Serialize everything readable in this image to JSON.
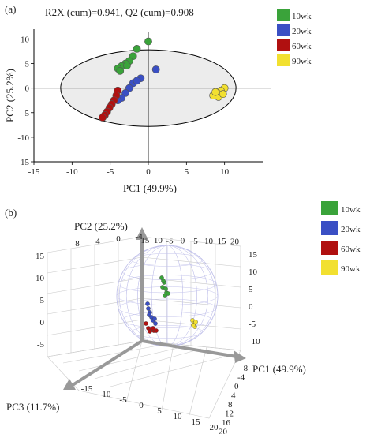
{
  "chart_data": [
    {
      "type": "scatter",
      "panel": "(a)",
      "title": "R2X (cum)=0.941, Q2 (cum)=0.908",
      "xlabel": "PC1 (49.9%)",
      "ylabel": "PC2 (25.2%)",
      "xlim": [
        -15,
        15
      ],
      "ylim": [
        -15,
        12
      ],
      "xticks": [
        "-15",
        "-10",
        "-5",
        "0",
        "5",
        "10"
      ],
      "yticks": [
        "10",
        "5",
        "0",
        "-5",
        "-10",
        "-15"
      ],
      "ellipse": {
        "center": [
          0,
          0
        ],
        "rx": 11.5,
        "ry": 7.8
      },
      "legend_position": "top-right",
      "series": [
        {
          "name": "10wk",
          "color": "#3aa33a",
          "points": [
            [
              0,
              9.5
            ],
            [
              -1.5,
              8
            ],
            [
              -2,
              6.5
            ],
            [
              -2.5,
              5.5
            ],
            [
              -3,
              5
            ],
            [
              -3.5,
              4.5
            ],
            [
              -4,
              4
            ],
            [
              -2.8,
              4.6
            ],
            [
              -3.7,
              3.5
            ]
          ]
        },
        {
          "name": "20wk",
          "color": "#3a4fc4",
          "points": [
            [
              1,
              3.8
            ],
            [
              -1,
              2
            ],
            [
              -2,
              1
            ],
            [
              -2.5,
              0
            ],
            [
              -3,
              -1
            ],
            [
              -3.5,
              -2
            ],
            [
              -4,
              -2.5
            ],
            [
              -1.5,
              1.5
            ]
          ]
        },
        {
          "name": "60wk",
          "color": "#b01010",
          "points": [
            [
              -4,
              -0.5
            ],
            [
              -4.2,
              -1.5
            ],
            [
              -4.5,
              -2.5
            ],
            [
              -4.8,
              -3.3
            ],
            [
              -5.1,
              -4
            ],
            [
              -5.4,
              -4.8
            ],
            [
              -5.7,
              -5.5
            ],
            [
              -6,
              -6
            ]
          ]
        },
        {
          "name": "90wk",
          "color": "#f2e030",
          "points": [
            [
              10,
              0
            ],
            [
              9.5,
              -0.5
            ],
            [
              9,
              -1
            ],
            [
              8.5,
              -1.5
            ],
            [
              9.2,
              -1.8
            ],
            [
              8.8,
              -0.8
            ],
            [
              9.8,
              -1.2
            ]
          ]
        }
      ]
    },
    {
      "type": "scatter",
      "panel": "(b)",
      "subtype": "3d",
      "xlabel": "PC1 (49.9%)",
      "ylabel": "PC2 (25.2%)",
      "zlabel": "PC3 (11.7%)",
      "pc1_ticks": [
        "-8",
        "-4",
        "0",
        "4",
        "8",
        "12",
        "16",
        "20"
      ],
      "pc2_ticks": [
        "15",
        "10",
        "5",
        "0",
        "-5",
        "-10"
      ],
      "pc3_ticks": [
        "-15",
        "-10",
        "-5",
        "0",
        "5",
        "10",
        "15",
        "20"
      ],
      "top_ticks": [
        "-15",
        "-10",
        "-5",
        "0",
        "5",
        "10",
        "15",
        "20"
      ],
      "left_ticks": [
        "15",
        "10",
        "5",
        "0",
        "-5"
      ],
      "back_ticks": [
        "8",
        "4",
        "0",
        "-4"
      ],
      "legend_position": "top-right",
      "series": [
        {
          "name": "10wk",
          "color": "#3aa33a"
        },
        {
          "name": "20wk",
          "color": "#3a4fc4"
        },
        {
          "name": "60wk",
          "color": "#b01010"
        },
        {
          "name": "90wk",
          "color": "#f2e030"
        }
      ]
    }
  ]
}
